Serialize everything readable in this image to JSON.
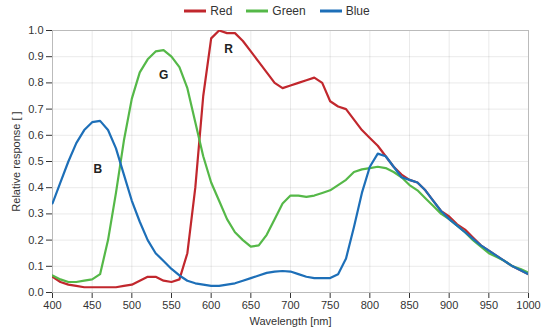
{
  "chart_data": {
    "type": "line",
    "x_label": "Wavelength [nm]",
    "y_label": "Relative response [ ]",
    "x": [
      400,
      410,
      420,
      430,
      440,
      450,
      460,
      470,
      480,
      490,
      500,
      510,
      520,
      530,
      540,
      550,
      560,
      570,
      580,
      590,
      600,
      610,
      620,
      630,
      640,
      650,
      660,
      670,
      680,
      690,
      700,
      710,
      720,
      730,
      740,
      750,
      760,
      770,
      780,
      790,
      800,
      810,
      820,
      830,
      840,
      850,
      860,
      870,
      880,
      890,
      900,
      910,
      920,
      930,
      940,
      950,
      960,
      970,
      980,
      990,
      1000
    ],
    "series": [
      {
        "name": "Red",
        "color": "#c1272d",
        "values": [
          0.06,
          0.04,
          0.03,
          0.025,
          0.02,
          0.02,
          0.02,
          0.02,
          0.02,
          0.025,
          0.03,
          0.045,
          0.06,
          0.06,
          0.045,
          0.04,
          0.05,
          0.15,
          0.4,
          0.75,
          0.97,
          1.0,
          0.99,
          0.99,
          0.96,
          0.92,
          0.88,
          0.84,
          0.8,
          0.78,
          0.79,
          0.8,
          0.81,
          0.82,
          0.8,
          0.73,
          0.71,
          0.7,
          0.66,
          0.62,
          0.59,
          0.56,
          0.52,
          0.48,
          0.45,
          0.43,
          0.42,
          0.39,
          0.35,
          0.31,
          0.29,
          0.26,
          0.24,
          0.21,
          0.18,
          0.16,
          0.14,
          0.12,
          0.1,
          0.085,
          0.07
        ]
      },
      {
        "name": "Green",
        "color": "#55b848",
        "values": [
          0.065,
          0.05,
          0.04,
          0.04,
          0.045,
          0.05,
          0.07,
          0.2,
          0.38,
          0.58,
          0.74,
          0.84,
          0.89,
          0.92,
          0.925,
          0.9,
          0.86,
          0.78,
          0.65,
          0.52,
          0.42,
          0.35,
          0.28,
          0.23,
          0.2,
          0.175,
          0.18,
          0.22,
          0.28,
          0.34,
          0.37,
          0.37,
          0.365,
          0.37,
          0.38,
          0.39,
          0.41,
          0.43,
          0.46,
          0.47,
          0.475,
          0.48,
          0.475,
          0.46,
          0.44,
          0.41,
          0.39,
          0.36,
          0.33,
          0.3,
          0.28,
          0.255,
          0.23,
          0.2,
          0.175,
          0.15,
          0.135,
          0.12,
          0.1,
          0.09,
          0.075
        ]
      },
      {
        "name": "Blue",
        "color": "#1d6fb8",
        "values": [
          0.34,
          0.42,
          0.5,
          0.57,
          0.62,
          0.65,
          0.655,
          0.62,
          0.55,
          0.45,
          0.35,
          0.27,
          0.2,
          0.15,
          0.12,
          0.09,
          0.065,
          0.045,
          0.035,
          0.03,
          0.025,
          0.025,
          0.03,
          0.035,
          0.045,
          0.055,
          0.065,
          0.075,
          0.08,
          0.082,
          0.08,
          0.07,
          0.06,
          0.055,
          0.055,
          0.055,
          0.07,
          0.13,
          0.25,
          0.38,
          0.48,
          0.53,
          0.52,
          0.48,
          0.44,
          0.43,
          0.42,
          0.39,
          0.35,
          0.31,
          0.28,
          0.255,
          0.23,
          0.205,
          0.18,
          0.16,
          0.14,
          0.12,
          0.1,
          0.085,
          0.07
        ]
      }
    ],
    "annotations": [
      {
        "text": "B",
        "x": 457,
        "y": 0.47
      },
      {
        "text": "G",
        "x": 540,
        "y": 0.83
      },
      {
        "text": "R",
        "x": 622,
        "y": 0.93
      }
    ],
    "xlim": [
      400,
      1000
    ],
    "xticks": [
      400,
      450,
      500,
      550,
      600,
      650,
      700,
      750,
      800,
      850,
      900,
      950,
      1000
    ],
    "ylim": [
      0,
      1
    ],
    "yticks": [
      {
        "value": 0,
        "label": "0.0"
      },
      0.1,
      0.2,
      0.3,
      0.4,
      0.5,
      0.6,
      0.7,
      0.8,
      0.9,
      {
        "value": 1,
        "label": "1.0"
      }
    ],
    "grid": true,
    "legend": "top"
  }
}
